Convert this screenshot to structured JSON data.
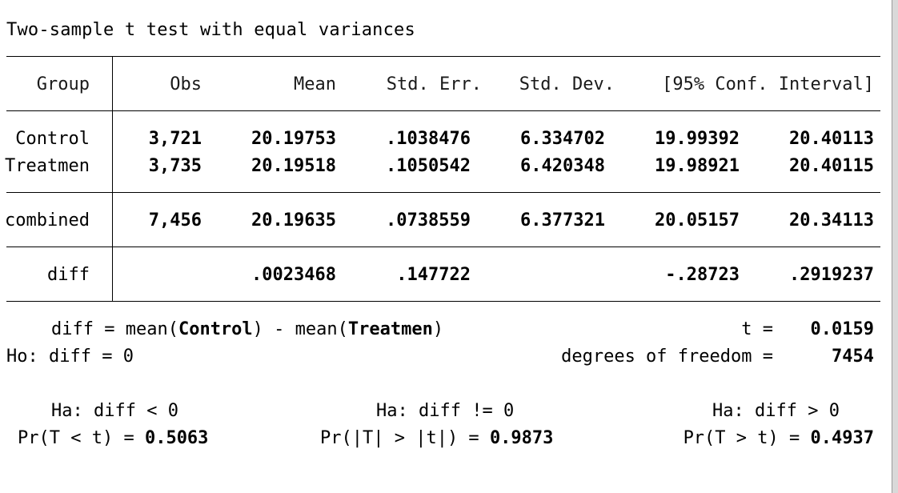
{
  "title": "Two-sample t test with equal variances",
  "columns": [
    "Group",
    "Obs",
    "Mean",
    "Std. Err.",
    "Std. Dev.",
    "[95% Conf. Interval]"
  ],
  "rows": [
    {
      "group": "Control",
      "obs": "3,721",
      "mean": "20.19753",
      "se": ".1038476",
      "sd": "6.334702",
      "ci_lo": "19.99392",
      "ci_hi": "20.40113"
    },
    {
      "group": "Treatmen",
      "obs": "3,735",
      "mean": "20.19518",
      "se": ".1050542",
      "sd": "6.420348",
      "ci_lo": "19.98921",
      "ci_hi": "20.40115"
    }
  ],
  "combined": {
    "group": "combined",
    "obs": "7,456",
    "mean": "20.19635",
    "se": ".0738559",
    "sd": "6.377321",
    "ci_lo": "20.05157",
    "ci_hi": "20.34113"
  },
  "diff": {
    "group": "diff",
    "mean": ".0023468",
    "se": ".147722",
    "ci_lo": "-.28723",
    "ci_hi": ".2919237"
  },
  "summary": {
    "diff_def_prefix": "diff = mean(",
    "diff_def_g1": "Control",
    "diff_def_mid": ") - mean(",
    "diff_def_g2": "Treatmen",
    "diff_def_suffix": ")",
    "t_label": "t =",
    "t_value": "0.0159",
    "ho": "Ho: diff = 0",
    "df_label": "degrees of freedom =",
    "df_value": "7454"
  },
  "hypotheses": [
    {
      "ha": "Ha: diff < 0",
      "pr_label": "Pr(T < t) =",
      "pr_value": "0.5063"
    },
    {
      "ha": "Ha: diff != 0",
      "pr_label": "Pr(|T| > |t|) =",
      "pr_value": "0.9873"
    },
    {
      "ha": "Ha: diff > 0",
      "pr_label": "Pr(T > t) =",
      "pr_value": "0.4937"
    }
  ]
}
